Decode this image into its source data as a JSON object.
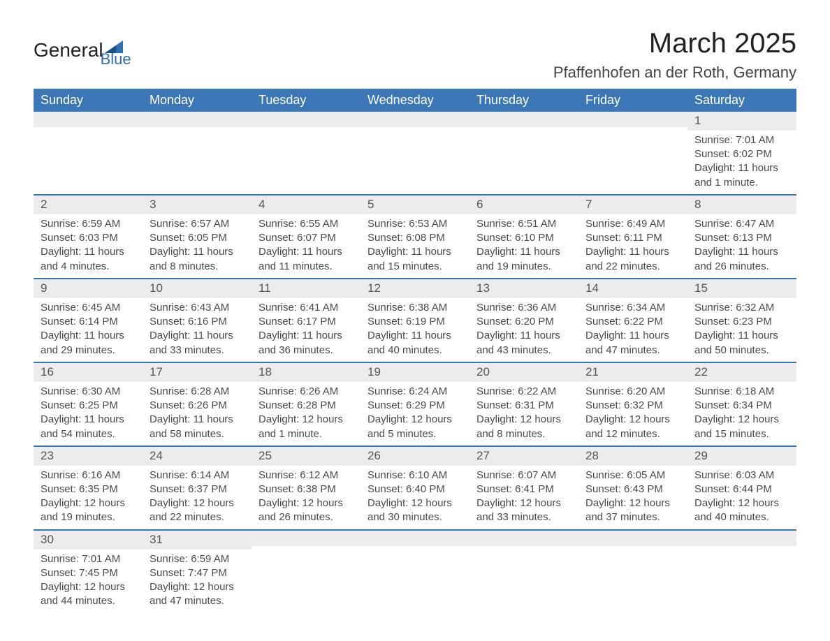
{
  "brand": {
    "primary": "General",
    "secondary": "Blue"
  },
  "title": "March 2025",
  "location": "Pfaffenhofen an der Roth, Germany",
  "colors": {
    "header_bg": "#3b77b7",
    "header_text": "#ffffff",
    "row_separator": "#3b77b7",
    "day_band_bg": "#ececec",
    "body_text": "#4a4a4a",
    "logo_blue": "#2f6fb0"
  },
  "day_headers": [
    "Sunday",
    "Monday",
    "Tuesday",
    "Wednesday",
    "Thursday",
    "Friday",
    "Saturday"
  ],
  "weeks": [
    [
      null,
      null,
      null,
      null,
      null,
      null,
      {
        "n": "1",
        "sunrise": "Sunrise: 7:01 AM",
        "sunset": "Sunset: 6:02 PM",
        "dl1": "Daylight: 11 hours",
        "dl2": "and 1 minute."
      }
    ],
    [
      {
        "n": "2",
        "sunrise": "Sunrise: 6:59 AM",
        "sunset": "Sunset: 6:03 PM",
        "dl1": "Daylight: 11 hours",
        "dl2": "and 4 minutes."
      },
      {
        "n": "3",
        "sunrise": "Sunrise: 6:57 AM",
        "sunset": "Sunset: 6:05 PM",
        "dl1": "Daylight: 11 hours",
        "dl2": "and 8 minutes."
      },
      {
        "n": "4",
        "sunrise": "Sunrise: 6:55 AM",
        "sunset": "Sunset: 6:07 PM",
        "dl1": "Daylight: 11 hours",
        "dl2": "and 11 minutes."
      },
      {
        "n": "5",
        "sunrise": "Sunrise: 6:53 AM",
        "sunset": "Sunset: 6:08 PM",
        "dl1": "Daylight: 11 hours",
        "dl2": "and 15 minutes."
      },
      {
        "n": "6",
        "sunrise": "Sunrise: 6:51 AM",
        "sunset": "Sunset: 6:10 PM",
        "dl1": "Daylight: 11 hours",
        "dl2": "and 19 minutes."
      },
      {
        "n": "7",
        "sunrise": "Sunrise: 6:49 AM",
        "sunset": "Sunset: 6:11 PM",
        "dl1": "Daylight: 11 hours",
        "dl2": "and 22 minutes."
      },
      {
        "n": "8",
        "sunrise": "Sunrise: 6:47 AM",
        "sunset": "Sunset: 6:13 PM",
        "dl1": "Daylight: 11 hours",
        "dl2": "and 26 minutes."
      }
    ],
    [
      {
        "n": "9",
        "sunrise": "Sunrise: 6:45 AM",
        "sunset": "Sunset: 6:14 PM",
        "dl1": "Daylight: 11 hours",
        "dl2": "and 29 minutes."
      },
      {
        "n": "10",
        "sunrise": "Sunrise: 6:43 AM",
        "sunset": "Sunset: 6:16 PM",
        "dl1": "Daylight: 11 hours",
        "dl2": "and 33 minutes."
      },
      {
        "n": "11",
        "sunrise": "Sunrise: 6:41 AM",
        "sunset": "Sunset: 6:17 PM",
        "dl1": "Daylight: 11 hours",
        "dl2": "and 36 minutes."
      },
      {
        "n": "12",
        "sunrise": "Sunrise: 6:38 AM",
        "sunset": "Sunset: 6:19 PM",
        "dl1": "Daylight: 11 hours",
        "dl2": "and 40 minutes."
      },
      {
        "n": "13",
        "sunrise": "Sunrise: 6:36 AM",
        "sunset": "Sunset: 6:20 PM",
        "dl1": "Daylight: 11 hours",
        "dl2": "and 43 minutes."
      },
      {
        "n": "14",
        "sunrise": "Sunrise: 6:34 AM",
        "sunset": "Sunset: 6:22 PM",
        "dl1": "Daylight: 11 hours",
        "dl2": "and 47 minutes."
      },
      {
        "n": "15",
        "sunrise": "Sunrise: 6:32 AM",
        "sunset": "Sunset: 6:23 PM",
        "dl1": "Daylight: 11 hours",
        "dl2": "and 50 minutes."
      }
    ],
    [
      {
        "n": "16",
        "sunrise": "Sunrise: 6:30 AM",
        "sunset": "Sunset: 6:25 PM",
        "dl1": "Daylight: 11 hours",
        "dl2": "and 54 minutes."
      },
      {
        "n": "17",
        "sunrise": "Sunrise: 6:28 AM",
        "sunset": "Sunset: 6:26 PM",
        "dl1": "Daylight: 11 hours",
        "dl2": "and 58 minutes."
      },
      {
        "n": "18",
        "sunrise": "Sunrise: 6:26 AM",
        "sunset": "Sunset: 6:28 PM",
        "dl1": "Daylight: 12 hours",
        "dl2": "and 1 minute."
      },
      {
        "n": "19",
        "sunrise": "Sunrise: 6:24 AM",
        "sunset": "Sunset: 6:29 PM",
        "dl1": "Daylight: 12 hours",
        "dl2": "and 5 minutes."
      },
      {
        "n": "20",
        "sunrise": "Sunrise: 6:22 AM",
        "sunset": "Sunset: 6:31 PM",
        "dl1": "Daylight: 12 hours",
        "dl2": "and 8 minutes."
      },
      {
        "n": "21",
        "sunrise": "Sunrise: 6:20 AM",
        "sunset": "Sunset: 6:32 PM",
        "dl1": "Daylight: 12 hours",
        "dl2": "and 12 minutes."
      },
      {
        "n": "22",
        "sunrise": "Sunrise: 6:18 AM",
        "sunset": "Sunset: 6:34 PM",
        "dl1": "Daylight: 12 hours",
        "dl2": "and 15 minutes."
      }
    ],
    [
      {
        "n": "23",
        "sunrise": "Sunrise: 6:16 AM",
        "sunset": "Sunset: 6:35 PM",
        "dl1": "Daylight: 12 hours",
        "dl2": "and 19 minutes."
      },
      {
        "n": "24",
        "sunrise": "Sunrise: 6:14 AM",
        "sunset": "Sunset: 6:37 PM",
        "dl1": "Daylight: 12 hours",
        "dl2": "and 22 minutes."
      },
      {
        "n": "25",
        "sunrise": "Sunrise: 6:12 AM",
        "sunset": "Sunset: 6:38 PM",
        "dl1": "Daylight: 12 hours",
        "dl2": "and 26 minutes."
      },
      {
        "n": "26",
        "sunrise": "Sunrise: 6:10 AM",
        "sunset": "Sunset: 6:40 PM",
        "dl1": "Daylight: 12 hours",
        "dl2": "and 30 minutes."
      },
      {
        "n": "27",
        "sunrise": "Sunrise: 6:07 AM",
        "sunset": "Sunset: 6:41 PM",
        "dl1": "Daylight: 12 hours",
        "dl2": "and 33 minutes."
      },
      {
        "n": "28",
        "sunrise": "Sunrise: 6:05 AM",
        "sunset": "Sunset: 6:43 PM",
        "dl1": "Daylight: 12 hours",
        "dl2": "and 37 minutes."
      },
      {
        "n": "29",
        "sunrise": "Sunrise: 6:03 AM",
        "sunset": "Sunset: 6:44 PM",
        "dl1": "Daylight: 12 hours",
        "dl2": "and 40 minutes."
      }
    ],
    [
      {
        "n": "30",
        "sunrise": "Sunrise: 7:01 AM",
        "sunset": "Sunset: 7:45 PM",
        "dl1": "Daylight: 12 hours",
        "dl2": "and 44 minutes."
      },
      {
        "n": "31",
        "sunrise": "Sunrise: 6:59 AM",
        "sunset": "Sunset: 7:47 PM",
        "dl1": "Daylight: 12 hours",
        "dl2": "and 47 minutes."
      },
      null,
      null,
      null,
      null,
      null
    ]
  ]
}
